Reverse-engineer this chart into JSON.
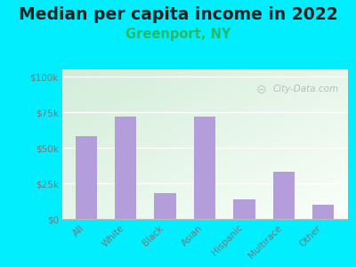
{
  "title": "Median per capita income in 2022",
  "subtitle": "Greenport, NY",
  "subtitle_color": "#22bb66",
  "categories": [
    "All",
    "White",
    "Black",
    "Asian",
    "Hispanic",
    "Multirace",
    "Other"
  ],
  "values": [
    58000,
    72000,
    18000,
    72000,
    14000,
    33000,
    10000
  ],
  "bar_color": "#b39ddb",
  "background_outer": "#00eeff",
  "yticks": [
    0,
    25000,
    50000,
    75000,
    100000
  ],
  "ytick_labels": [
    "$0",
    "$25k",
    "$50k",
    "$75k",
    "$100k"
  ],
  "ylim": [
    0,
    105000
  ],
  "watermark": "City-Data.com",
  "title_fontsize": 13.5,
  "subtitle_fontsize": 10.5,
  "tick_color": "#777777",
  "grad_color_bottom_left": "#c8e6c9",
  "grad_color_top_right": "#f8fff8"
}
